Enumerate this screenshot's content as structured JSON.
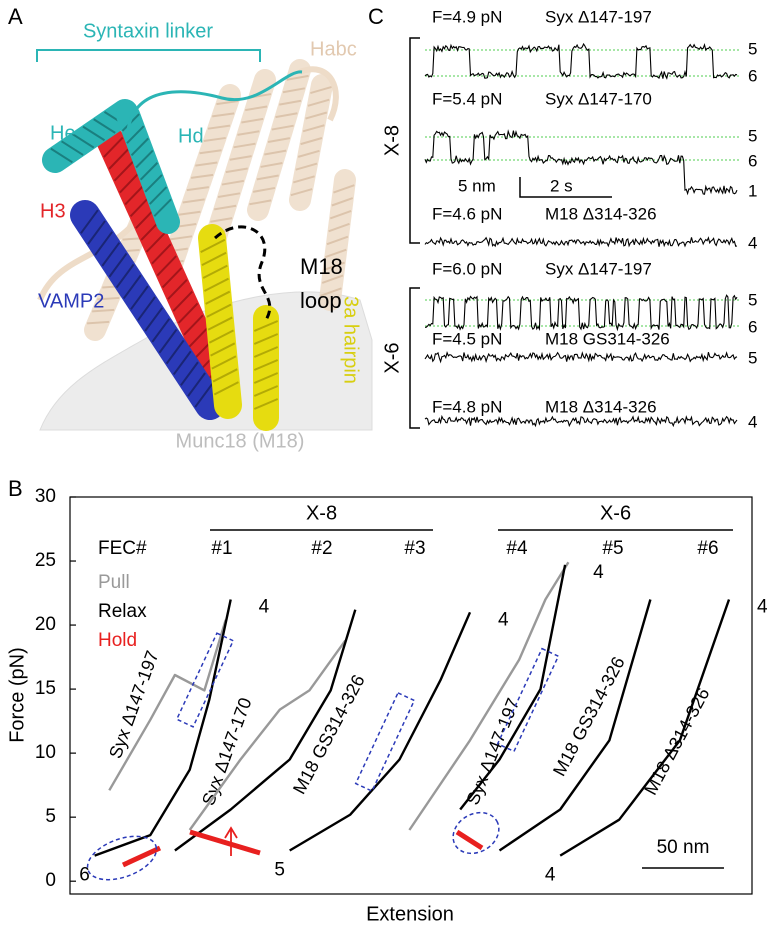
{
  "panel_a": {
    "label": "A",
    "syntaxin_linker": "Syntaxin linker",
    "habc": "Habc",
    "he": "He",
    "hd": "Hd",
    "h3": "H3",
    "vamp2": "VAMP2",
    "m18": "M18",
    "loop": "loop",
    "hairpin": "3a hairpin",
    "munc18": "Munc18 (M18)"
  },
  "panel_c": {
    "label": "C",
    "groups": [
      {
        "label": "X-8",
        "traces": [
          {
            "force": "F=4.9 pN",
            "construct": "Syx Δ147-197",
            "states": [
              "5",
              "6"
            ]
          },
          {
            "force": "F=5.4 pN",
            "construct": "Syx Δ147-170",
            "states": [
              "5",
              "6",
              "1"
            ]
          },
          {
            "force": "F=4.6 pN",
            "construct": "M18 Δ314-326",
            "states": [
              "4"
            ]
          }
        ]
      },
      {
        "label": "X-6",
        "traces": [
          {
            "force": "F=6.0 pN",
            "construct": "Syx Δ147-197",
            "states": [
              "5",
              "6"
            ]
          },
          {
            "force": "F=4.5 pN",
            "construct": "M18 GS314-326",
            "states": [
              "5"
            ]
          },
          {
            "force": "F=4.8 pN",
            "construct": "M18 Δ314-326",
            "states": [
              "4"
            ]
          }
        ]
      }
    ],
    "scale_y": "5 nm",
    "scale_x": "2 s"
  },
  "chart_data": {
    "type": "line",
    "panel_label": "B",
    "ylabel": "Force (pN)",
    "xlabel": "Extension",
    "ylim": [
      -1,
      30
    ],
    "yticks": [
      0,
      5,
      10,
      15,
      20,
      25,
      30
    ],
    "xlim": [
      0,
      416
    ],
    "legend_title": "FEC#",
    "legend": [
      {
        "label": "Pull",
        "color": "#999999"
      },
      {
        "label": "Relax",
        "color": "#000000"
      },
      {
        "label": "Hold",
        "color": "#e8201f"
      }
    ],
    "scale_bar": {
      "value": 50,
      "label": "50 nm"
    },
    "groups": [
      {
        "label": "X-8",
        "fecs": [
          {
            "number": "#1",
            "label": "Syx Δ147-197",
            "top_state": "4",
            "bottom_state": "6",
            "relax": {
              "x": [
                15,
                49,
                73,
                85,
                98
              ],
              "values": [
                2.0,
                3.6,
                8.7,
                14.2,
                22.0
              ]
            },
            "pull": {
              "x": [
                24,
                49,
                64,
                82,
                95
              ],
              "values": [
                7.1,
                12.6,
                16.1,
                14.9,
                20.4
              ]
            }
          },
          {
            "number": "#2",
            "label": "Syx Δ147-170",
            "relax": {
              "x": [
                64,
                98,
                134,
                159,
                174
              ],
              "values": [
                2.4,
                5.6,
                9.5,
                14.9,
                21.2
              ]
            },
            "pull": {
              "x": [
                73,
                104,
                128,
                146,
                168
              ],
              "values": [
                4.0,
                9.5,
                13.4,
                14.9,
                18.8
              ]
            }
          },
          {
            "number": "#3",
            "label": "M18 GS314-326",
            "top_state": "4",
            "bottom_state": "5",
            "relax": {
              "x": [
                134,
                171,
                201,
                226,
                244
              ],
              "values": [
                2.4,
                5.2,
                9.5,
                15.7,
                21.0
              ]
            }
          }
        ]
      },
      {
        "label": "X-6",
        "fecs": [
          {
            "number": "#4",
            "label": "Syx Δ147-197",
            "top_state": "4",
            "relax": {
              "x": [
                238,
                262,
                287,
                302
              ],
              "values": [
                5.6,
                9.5,
                15.0,
                24.7
              ]
            },
            "pull": {
              "x": [
                207,
                244,
                274,
                290,
                304
              ],
              "values": [
                4.0,
                11.0,
                17.3,
                22.0,
                24.9
              ]
            }
          },
          {
            "number": "#5",
            "label": "M18 GS314-326",
            "relax": {
              "x": [
                262,
                299,
                329,
                354
              ],
              "values": [
                2.4,
                5.6,
                11.0,
                22.0
              ]
            }
          },
          {
            "number": "#6",
            "label": "M18 Δ314-326",
            "top_state": "4",
            "bottom_state": "4",
            "relax": {
              "x": [
                299,
                335,
                372,
                402
              ],
              "values": [
                2.0,
                4.8,
                11.0,
                22.0
              ]
            }
          }
        ]
      }
    ]
  }
}
